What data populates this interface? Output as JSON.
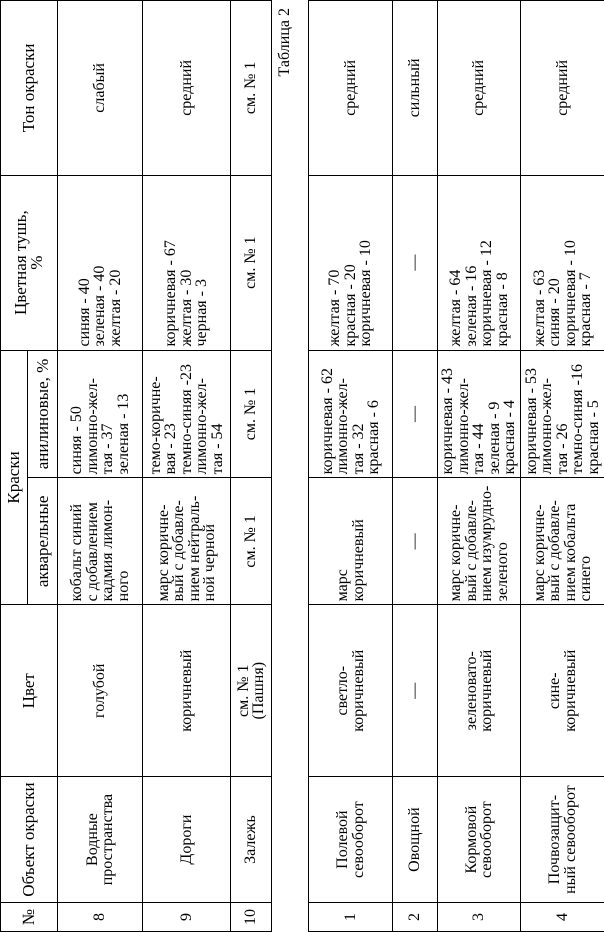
{
  "headers": {
    "num": "№",
    "object": "Объект окраски",
    "color": "Цвет",
    "paints": "Краски",
    "watercolor": "акварельные",
    "aniline": "анилиновые, %",
    "ink": "Цветная тушь,\n%",
    "tone": "Тон окраски"
  },
  "table1_rows": [
    {
      "num": "8",
      "object": "Водные\nпространства",
      "color": "голубой",
      "watercolor": "кобальт синий\nс добавлением\nкадмия лимон-\nного",
      "aniline": "синяя - 50\nлимонно-жел-\nтая - 37\nзеленая - 13",
      "ink": "синяя - 40\nзеленая - 40\nжелтая - 20",
      "tone": "слабый"
    },
    {
      "num": "9",
      "object": "Дороги",
      "color": "коричневый",
      "watercolor": "марс коричне-\nвый с добавле-\nнием нейтраль-\nной черной",
      "aniline": "темо-коричне-\nвая - 23\nтемно-синяя -23\nлимонно-жел-\nтая - 54",
      "ink": "коричневая - 67\nжелтая - 30\nчерная - 3",
      "tone": "средний"
    },
    {
      "num": "10",
      "object": "Залежь",
      "color": "см. № 1\n(Пашня)",
      "watercolor": "см. № 1",
      "aniline": "см. № 1",
      "ink": "см. № 1",
      "tone": "см. № 1"
    }
  ],
  "table2_caption": "Таблица 2",
  "table2_rows": [
    {
      "num": "1",
      "object": "Полевой\nсевооборот",
      "color": "светло-\nкоричневый",
      "watercolor": "марс\nкоричневый",
      "aniline": "коричневая - 62\nлимонно-жел-\nтая - 32\nкрасная - 6",
      "ink": "желтая - 70\nкрасная - 20\nкоричневая - 10",
      "tone": "средний"
    },
    {
      "num": "2",
      "object": "Овощной",
      "color": "—",
      "watercolor": "—",
      "aniline": "—",
      "ink": "—",
      "tone": "сильный"
    },
    {
      "num": "3",
      "object": "Кормовой\nсевооборот",
      "color": "зеленовато-\nкоричневый",
      "watercolor": "марс коричне-\nвый с добавле-\nнием изумрудно-\nзеленого",
      "aniline": "коричневая - 43\nлимонно-жел-\nтая - 44\nзеленая - 9\nкрасная - 4",
      "ink": "желтая - 64\nзеленая - 16\nкоричневая - 12\nкрасная - 8",
      "tone": "средний"
    },
    {
      "num": "4",
      "object": "Почвозащит-\nный севооборот",
      "color": "сине-\nкоричневый",
      "watercolor": "марс коричне-\nвый с добавле-\nнием кобальта\nсинего",
      "aniline": "коричневая - 53\nлимонно-жел-\nтая - 26\nтемно-синяя -16\nкрасная - 5",
      "ink": "желтая - 63\nсиняя - 20\nкоричневая - 10\nкрасная - 7",
      "tone": "средний"
    }
  ]
}
